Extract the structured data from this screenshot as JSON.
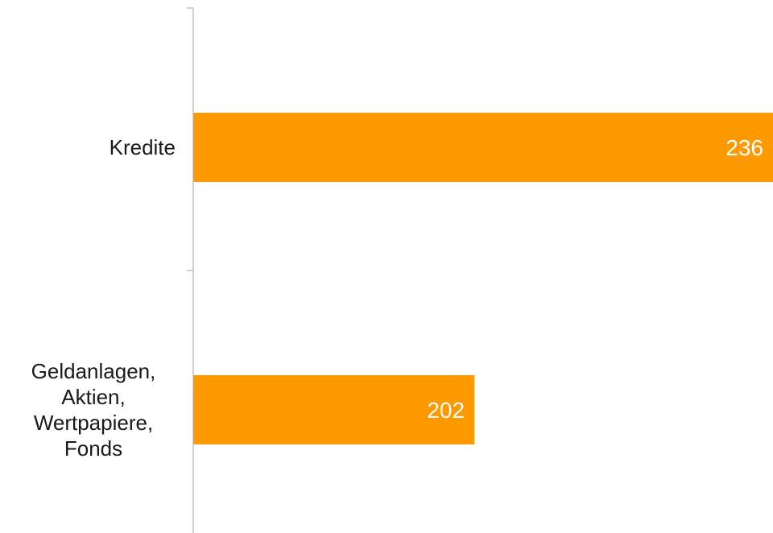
{
  "chart_data": {
    "type": "bar",
    "orientation": "horizontal",
    "categories": [
      [
        "Kredite"
      ],
      [
        "Geldanlagen,",
        "Aktien,",
        "Wertpapiere,",
        "Fonds"
      ]
    ],
    "values": [
      236,
      202
    ],
    "value_labels": [
      "236",
      "202"
    ],
    "title": "",
    "xlabel": "",
    "ylabel": "",
    "xlim": [
      170,
      236
    ],
    "bar_color": "#ff9900",
    "axis_color": "#a6a6a6",
    "grid": false,
    "legend": "none"
  }
}
